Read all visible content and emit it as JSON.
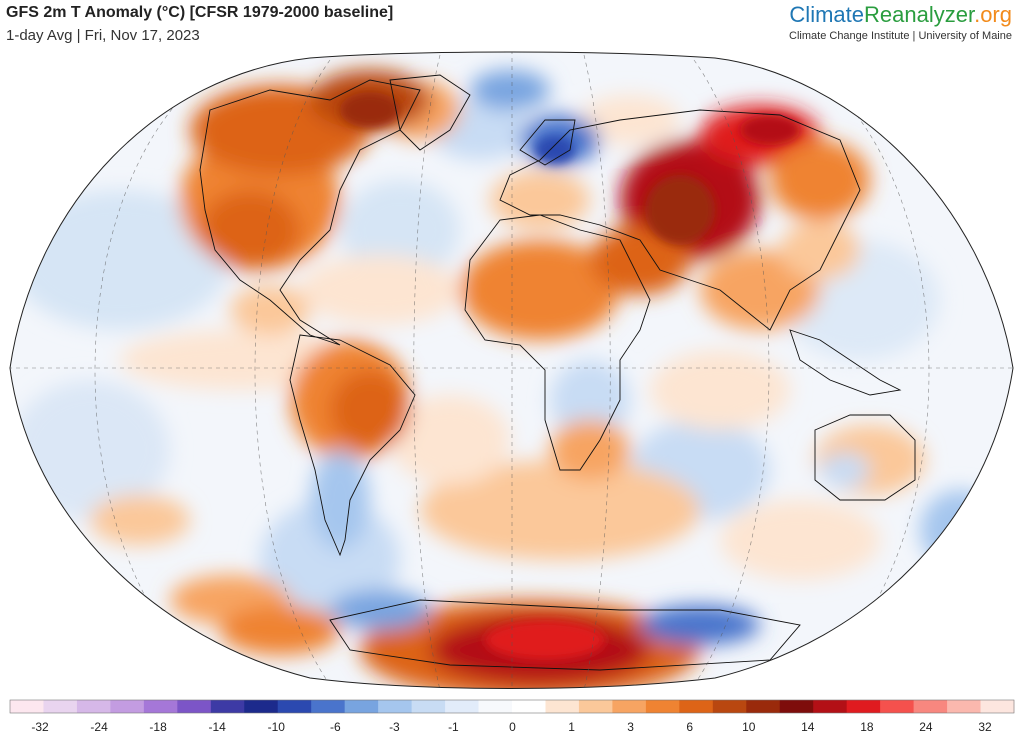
{
  "header": {
    "title": "GFS 2m T Anomaly (°C) [CFSR 1979-2000 baseline]",
    "subtitle": "1-day Avg | Fri, Nov 17, 2023"
  },
  "brand": {
    "part1": "Climate",
    "part2": "Reanalyzer",
    "part3": ".org",
    "affiliation": "Climate Change Institute | University of Maine"
  },
  "legend": {
    "colors": [
      "#fde7ef",
      "#e9d4ef",
      "#d6b8e8",
      "#c39ce1",
      "#a577d8",
      "#7c55c7",
      "#3d3aa5",
      "#1c2a8c",
      "#2b49b0",
      "#4a74cc",
      "#78a4e0",
      "#a5c6ee",
      "#c8dcf4",
      "#e2ecfa",
      "#f7f9fc",
      "#ffffff",
      "#fde5d2",
      "#fbc89a",
      "#f7a462",
      "#ef8332",
      "#dd6417",
      "#b94710",
      "#9a2a0b",
      "#7e0d0b",
      "#b31016",
      "#e01b1f",
      "#f5514d",
      "#f8877f",
      "#fbb8ae",
      "#fde6df"
    ],
    "tick_labels": [
      "-32",
      "-24",
      "-18",
      "-14",
      "-10",
      "-6",
      "-3",
      "-1",
      "0",
      "1",
      "3",
      "6",
      "10",
      "14",
      "18",
      "24",
      "32"
    ]
  }
}
